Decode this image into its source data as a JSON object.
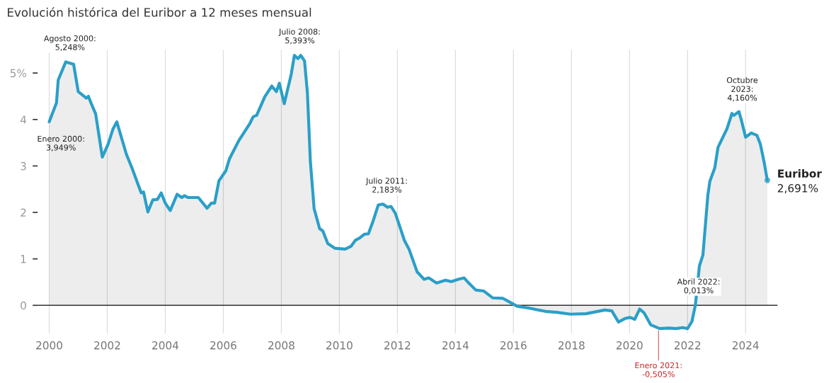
{
  "chart_data": {
    "type": "area",
    "title": "Evolución histórica del Euribor a 12 meses mensual",
    "x": [
      2000.0,
      2000.25,
      2000.31,
      2000.57,
      2000.84,
      2001.0,
      2001.28,
      2001.35,
      2001.47,
      2001.6,
      2001.83,
      2002.03,
      2002.2,
      2002.33,
      2002.66,
      2002.85,
      2003.17,
      2003.25,
      2003.4,
      2003.57,
      2003.73,
      2003.86,
      2004.0,
      2004.17,
      2004.41,
      2004.57,
      2004.66,
      2004.78,
      2005.14,
      2005.44,
      2005.59,
      2005.7,
      2005.85,
      2006.09,
      2006.21,
      2006.53,
      2006.92,
      2007.03,
      2007.15,
      2007.43,
      2007.67,
      2007.83,
      2007.93,
      2008.1,
      2008.34,
      2008.45,
      2008.57,
      2008.67,
      2008.8,
      2008.9,
      2009.0,
      2009.13,
      2009.32,
      2009.43,
      2009.6,
      2009.84,
      2010.2,
      2010.4,
      2010.55,
      2010.7,
      2010.86,
      2011.0,
      2011.15,
      2011.34,
      2011.5,
      2011.66,
      2011.78,
      2011.93,
      2012.24,
      2012.4,
      2012.68,
      2012.92,
      2013.08,
      2013.35,
      2013.66,
      2013.86,
      2014.1,
      2014.3,
      2014.46,
      2014.7,
      2014.97,
      2015.29,
      2015.64,
      2015.9,
      2016.13,
      2016.55,
      2017.1,
      2017.49,
      2017.96,
      2018.5,
      2019.15,
      2019.39,
      2019.62,
      2019.86,
      2020.02,
      2020.18,
      2020.35,
      2020.5,
      2020.73,
      2021.04,
      2021.36,
      2021.6,
      2021.83,
      2022.0,
      2022.15,
      2022.27,
      2022.41,
      2022.53,
      2022.7,
      2022.77,
      2022.94,
      2023.05,
      2023.36,
      2023.53,
      2023.6,
      2023.77,
      2023.85,
      2024.0,
      2024.2,
      2024.39,
      2024.51,
      2024.64,
      2024.75
    ],
    "series": [
      {
        "name": "Euribor",
        "color": "#2a9fc8",
        "values": [
          3.95,
          4.36,
          4.85,
          5.24,
          5.19,
          4.6,
          4.46,
          4.5,
          4.31,
          4.12,
          3.19,
          3.47,
          3.8,
          3.95,
          3.25,
          2.96,
          2.42,
          2.44,
          2.01,
          2.27,
          2.28,
          2.42,
          2.2,
          2.04,
          2.39,
          2.32,
          2.36,
          2.32,
          2.32,
          2.09,
          2.2,
          2.2,
          2.68,
          2.9,
          3.15,
          3.54,
          3.92,
          4.06,
          4.09,
          4.49,
          4.72,
          4.6,
          4.78,
          4.34,
          4.97,
          5.38,
          5.31,
          5.38,
          5.26,
          4.56,
          3.1,
          2.08,
          1.65,
          1.6,
          1.33,
          1.23,
          1.21,
          1.27,
          1.4,
          1.45,
          1.53,
          1.54,
          1.79,
          2.16,
          2.18,
          2.11,
          2.13,
          1.98,
          1.4,
          1.21,
          0.72,
          0.56,
          0.59,
          0.48,
          0.54,
          0.51,
          0.56,
          0.59,
          0.48,
          0.33,
          0.31,
          0.16,
          0.15,
          0.06,
          -0.02,
          -0.06,
          -0.13,
          -0.15,
          -0.19,
          -0.18,
          -0.1,
          -0.12,
          -0.36,
          -0.28,
          -0.26,
          -0.3,
          -0.08,
          -0.16,
          -0.42,
          -0.5,
          -0.49,
          -0.5,
          -0.48,
          -0.5,
          -0.35,
          0.0,
          0.85,
          1.08,
          2.37,
          2.67,
          2.96,
          3.4,
          3.8,
          4.13,
          4.09,
          4.17,
          4.0,
          3.62,
          3.71,
          3.66,
          3.47,
          3.08,
          2.69
        ]
      }
    ],
    "xlim": [
      1999.6,
      2025.1
    ],
    "xticks": [
      2000,
      2002,
      2004,
      2006,
      2008,
      2010,
      2012,
      2014,
      2016,
      2018,
      2020,
      2022,
      2024
    ],
    "ylim": [
      -0.6,
      5.5
    ],
    "yticks": [
      0,
      1,
      2,
      3,
      4,
      {
        "value": 5,
        "label": "5%"
      }
    ],
    "grid": "x",
    "ref_lines": [
      {
        "axis": "y",
        "value": 0,
        "color": "#333333"
      }
    ],
    "annotations": [
      {
        "text": "Enero 2000:\n3,949%",
        "x": 2000.0,
        "y": 3.949
      },
      {
        "text": "Agosto 2000:\n5,248%",
        "x": 2000.58,
        "y": 5.248
      },
      {
        "text": "Julio 2008:\n5,393%",
        "x": 2008.5,
        "y": 5.393
      },
      {
        "text": "Julio 2011:\n2,183%",
        "x": 2011.5,
        "y": 2.183
      },
      {
        "text": "Enero 2021:\n-0,505%",
        "x": 2021.0,
        "y": -0.505
      },
      {
        "text": "Abril 2022:\n0,013%",
        "x": 2022.25,
        "y": 0.013
      },
      {
        "text": "Octubre\n2023:\n4,160%",
        "x": 2023.75,
        "y": 4.16
      },
      {
        "text": "2,691%",
        "x": 2024.75,
        "y": 2.691
      }
    ]
  }
}
